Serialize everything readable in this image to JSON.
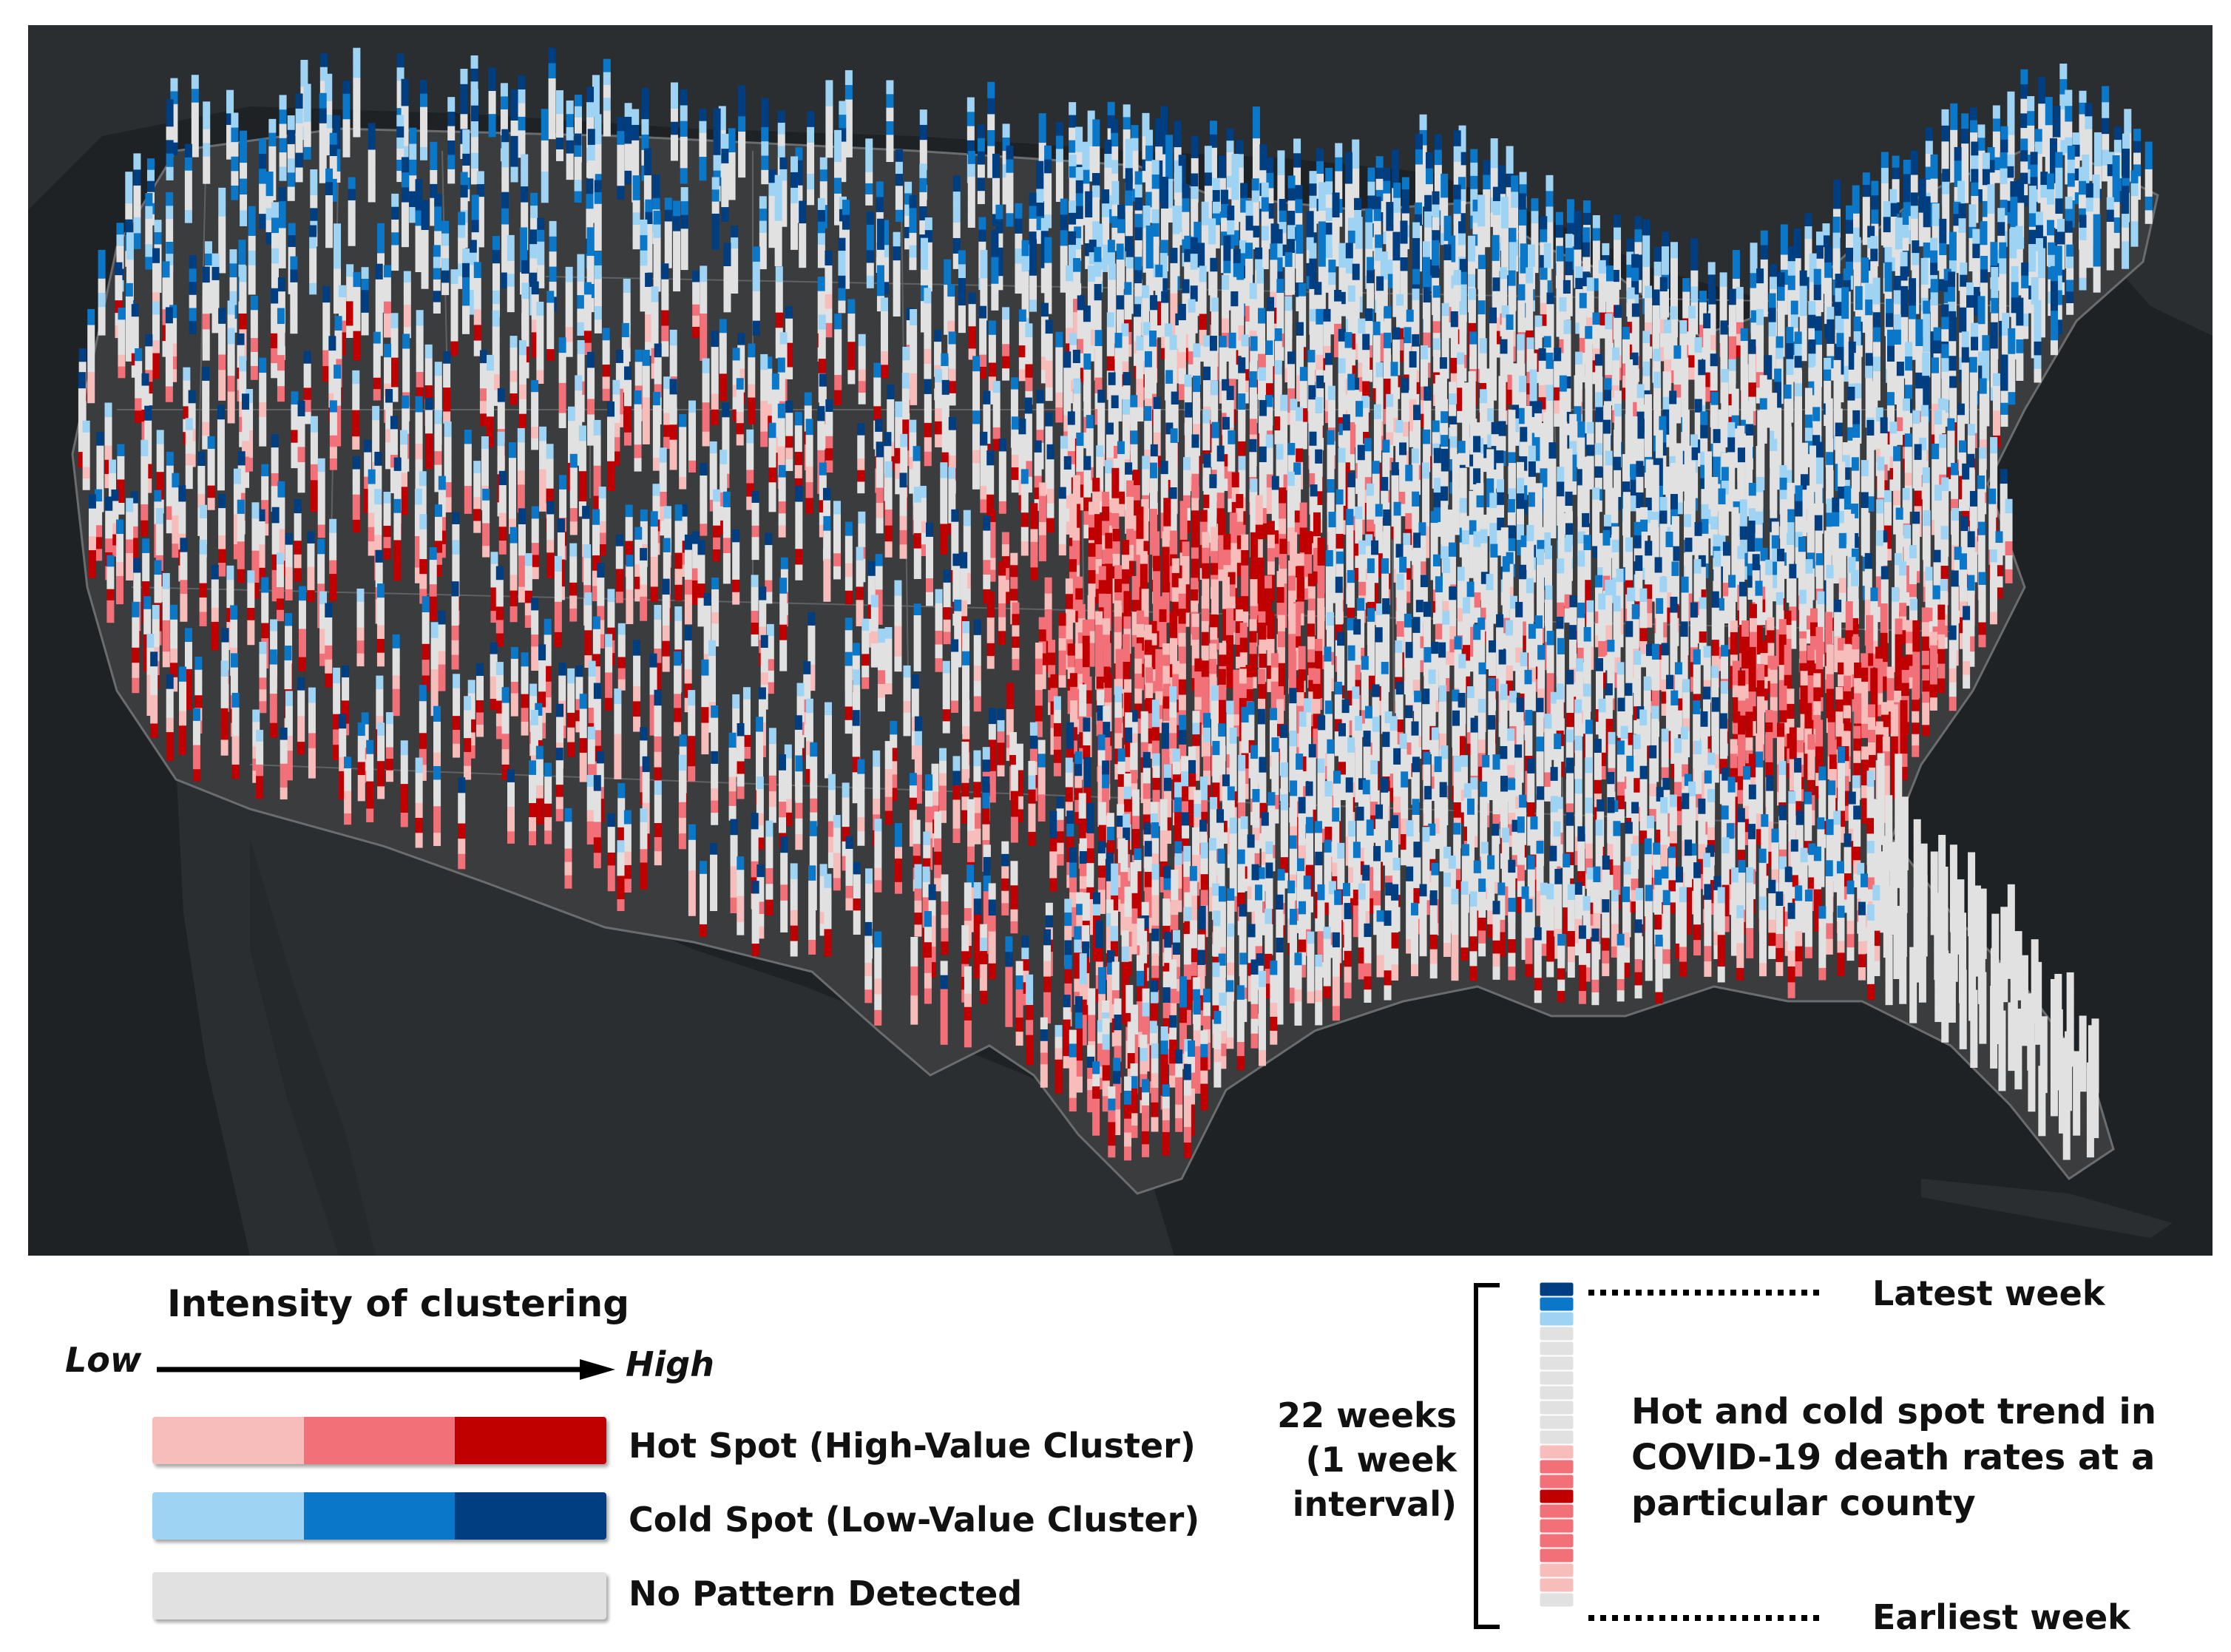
{
  "map": {
    "colors": {
      "background": "#1f2224",
      "land": "#3a3c3e",
      "boundary": "#5a5c5e",
      "no_pattern": "#e1e1e1",
      "hot": [
        "#f7bdbb",
        "#f27179",
        "#c00000"
      ],
      "cold": [
        "#9fd3f3",
        "#0a77c9",
        "#003e82"
      ]
    }
  },
  "legend": {
    "title": "Intensity of clustering",
    "low_label": "Low",
    "high_label": "High",
    "rows": [
      {
        "key": "hot",
        "label": "Hot Spot (High-Value Cluster)"
      },
      {
        "key": "cold",
        "label": "Cold Spot (Low-Value Cluster)"
      },
      {
        "key": "no_pattern",
        "label": "No Pattern Detected"
      }
    ]
  },
  "trend_legend": {
    "weeks_label": "22 weeks\n(1 week\ninterval)",
    "latest_label": "Latest week",
    "earliest_label": "Earliest week",
    "description": "Hot and cold spot trend in\nCOVID-19 death rates at a\nparticular county"
  }
}
